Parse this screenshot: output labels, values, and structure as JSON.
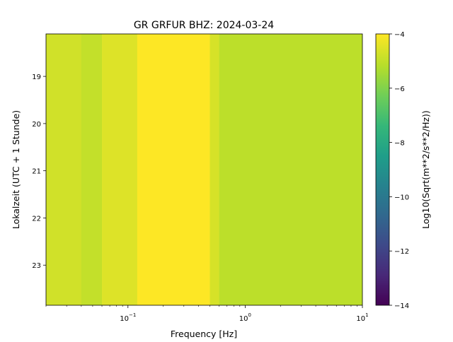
{
  "chart_data": {
    "type": "heatmap",
    "title": "GR GRFUR  BHZ: 2024-03-24",
    "xlabel": "Frequency [Hz]",
    "ylabel": "Lokalzeit (UTC + 1 Stunde)",
    "x_scale": "log",
    "xlim": [
      0.02,
      10
    ],
    "x_ticks": [
      {
        "value": 0.1,
        "base": "10",
        "exp": "−1"
      },
      {
        "value": 1,
        "base": "10",
        "exp": "0"
      },
      {
        "value": 10,
        "base": "10",
        "exp": "1"
      }
    ],
    "ylim": [
      18.1,
      23.85
    ],
    "y_ticks": [
      19,
      20,
      21,
      22,
      23
    ],
    "colorbar": {
      "label": "Log10(Sqrt(m**2/s**2/Hz))",
      "range": [
        -14,
        -4
      ],
      "ticks": [
        -4,
        -6,
        -8,
        -10,
        -12,
        -14
      ],
      "tick_labels": [
        "−4",
        "−6",
        "−8",
        "−10",
        "−12",
        "−14"
      ],
      "colormap": "viridis"
    },
    "bands": [
      {
        "f_min": 0.02,
        "f_max": 0.04,
        "value": -4.7
      },
      {
        "f_min": 0.04,
        "f_max": 0.06,
        "value": -4.9
      },
      {
        "f_min": 0.06,
        "f_max": 0.12,
        "value": -4.5
      },
      {
        "f_min": 0.12,
        "f_max": 0.5,
        "value": -4.0
      },
      {
        "f_min": 0.5,
        "f_max": 0.6,
        "value": -4.6
      },
      {
        "f_min": 0.6,
        "f_max": 10,
        "value": -5.0
      }
    ]
  },
  "colors": {
    "cmap": [
      "#440154",
      "#482878",
      "#3e4989",
      "#31688e",
      "#26828e",
      "#1f9e89",
      "#35b779",
      "#6ece58",
      "#b5de2b",
      "#fde725"
    ]
  }
}
